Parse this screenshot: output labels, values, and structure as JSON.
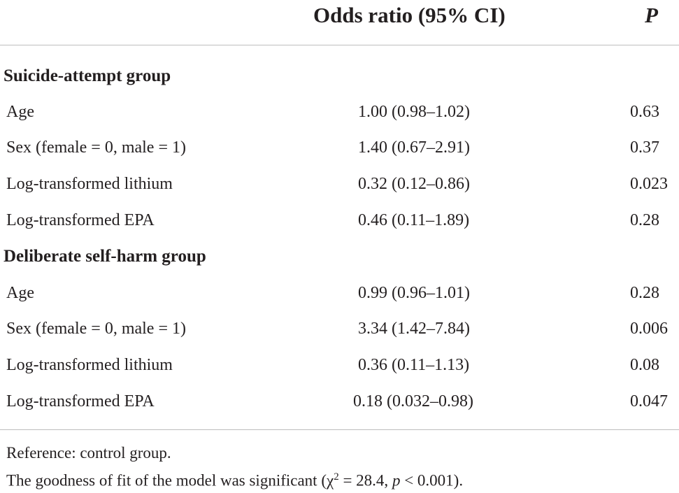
{
  "header": {
    "odds_ratio": "Odds ratio (95% CI)",
    "p": "P"
  },
  "groups": [
    {
      "title": "Suicide-attempt group",
      "rows": [
        {
          "label": "Age",
          "or": "1.00 (0.98–1.02)",
          "p": "0.63"
        },
        {
          "label": "Sex (female = 0, male = 1)",
          "or": "1.40 (0.67–2.91)",
          "p": "0.37"
        },
        {
          "label": "Log-transformed lithium",
          "or": "0.32 (0.12–0.86)",
          "p": "0.023"
        },
        {
          "label": "Log-transformed EPA",
          "or": "0.46 (0.11–1.89)",
          "p": "0.28"
        }
      ]
    },
    {
      "title": "Deliberate self-harm group",
      "rows": [
        {
          "label": "Age",
          "or": "0.99 (0.96–1.01)",
          "p": "0.28"
        },
        {
          "label": "Sex (female = 0, male = 1)",
          "or": "3.34 (1.42–7.84)",
          "p": "0.006"
        },
        {
          "label": "Log-transformed lithium",
          "or": "0.36 (0.11–1.13)",
          "p": "0.08"
        },
        {
          "label": "Log-transformed EPA",
          "or": "0.18 (0.032–0.98)",
          "p": "0.047"
        }
      ]
    }
  ],
  "footnotes": {
    "reference": "Reference: control group.",
    "fit_prefix": "The goodness of fit of the model was significant (",
    "chi": "χ",
    "chi_exp": "2",
    "chi_val": " = 28.4, ",
    "p_sym": "p",
    "p_val": " < 0.001)."
  }
}
